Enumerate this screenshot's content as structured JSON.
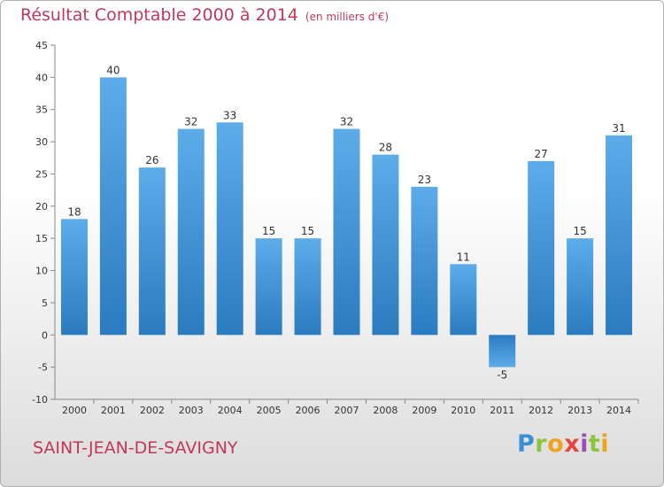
{
  "title": "Résultat Comptable 2000 à 2014",
  "unit_label": "(en milliers d'€)",
  "place_name": "SAINT-JEAN-DE-SAVIGNY",
  "logo_text": "Proxiti",
  "colors": {
    "title": "#c0395a",
    "bar_light": "#5dacea",
    "bar_dark": "#2a7bc0",
    "axis": "#888888",
    "label": "#333333"
  },
  "chart_data": {
    "type": "bar",
    "title": "Résultat Comptable 2000 à 2014",
    "subtitle": "(en milliers d'€)",
    "xlabel": "",
    "ylabel": "",
    "categories": [
      "2000",
      "2001",
      "2002",
      "2003",
      "2004",
      "2005",
      "2006",
      "2007",
      "2008",
      "2009",
      "2010",
      "2011",
      "2012",
      "2013",
      "2014"
    ],
    "values": [
      18,
      40,
      26,
      32,
      33,
      15,
      15,
      32,
      28,
      23,
      11,
      -5,
      27,
      15,
      31
    ],
    "ylim": [
      -10,
      45
    ],
    "yticks": [
      -10,
      -5,
      0,
      5,
      10,
      15,
      20,
      25,
      30,
      35,
      40,
      45
    ],
    "grid": false,
    "legend": "none"
  }
}
